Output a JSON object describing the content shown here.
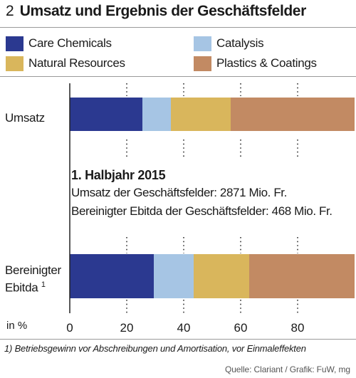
{
  "header": {
    "number": "2",
    "title": "Umsatz und Ergebnis der Geschäftsfelder"
  },
  "legend": [
    {
      "label": "Care Chemicals",
      "color": "#2b3990"
    },
    {
      "label": "Catalysis",
      "color": "#a6c5e4"
    },
    {
      "label": "Natural Resources",
      "color": "#d9b65c"
    },
    {
      "label": "Plastics & Coatings",
      "color": "#c28a63"
    }
  ],
  "note": {
    "heading": "1. Halbjahr 2015",
    "line1": "Umsatz der Geschäftsfelder: 2871 Mio. Fr.",
    "line2": "Bereinigter Ebitda der Geschäftsfelder: 468 Mio. Fr."
  },
  "footnote": "1) Betriebsgewinn vor Abschreibungen und Amortisation, vor Einmaleffekten",
  "source": "Quelle: Clariant / Grafik: FuW, mg",
  "chart_data": {
    "type": "bar",
    "orientation": "horizontal",
    "stacked": true,
    "categories": [
      "Umsatz",
      "Bereinigter Ebitda"
    ],
    "category_labels": [
      {
        "text": "Umsatz",
        "sup": ""
      },
      {
        "text": "Bereinigter Ebitda",
        "sup": "1"
      }
    ],
    "series": [
      {
        "name": "Care Chemicals",
        "values": [
          25.5,
          29.5
        ]
      },
      {
        "name": "Catalysis",
        "values": [
          10,
          14
        ]
      },
      {
        "name": "Natural Resources",
        "values": [
          21,
          19.5
        ]
      },
      {
        "name": "Plastics & Coatings",
        "values": [
          43.5,
          37
        ]
      }
    ],
    "xlabel": "in %",
    "xlim": [
      0,
      100
    ],
    "xticks": [
      0,
      20,
      40,
      60,
      80
    ],
    "grid": "dotted vertical"
  }
}
